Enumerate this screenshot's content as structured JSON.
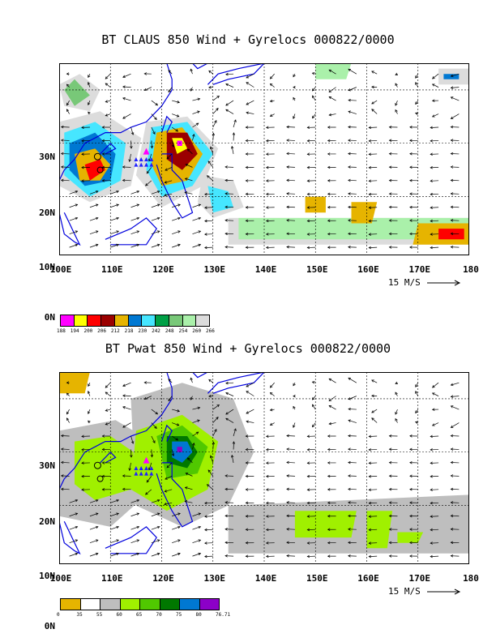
{
  "panel1": {
    "title": "BT CLAUS 850 Wind + Gyrelocs 000822/0000",
    "lat_labels": [
      "30N",
      "20N",
      "10N",
      "0N"
    ],
    "lon_labels": [
      "100E",
      "110E",
      "120E",
      "130E",
      "140E",
      "150E",
      "160E",
      "170E",
      "180"
    ],
    "scale_label": "15 M/S",
    "legend": {
      "colors": [
        "#ff00ff",
        "#ffff00",
        "#ff0000",
        "#9b0000",
        "#e6b400",
        "#0078d2",
        "#46e6ff",
        "#00a046",
        "#78c878",
        "#aaf0aa",
        "#dcdcdc"
      ],
      "labels": [
        "188",
        "194",
        "200",
        "206",
        "212",
        "218",
        "230",
        "242",
        "248",
        "254",
        "260",
        "266"
      ]
    }
  },
  "panel2": {
    "title": "BT Pwat 850 Wind + Gyrelocs 000822/0000",
    "lat_labels": [
      "30N",
      "20N",
      "10N",
      "0N"
    ],
    "lon_labels": [
      "100E",
      "110E",
      "120E",
      "130E",
      "140E",
      "150E",
      "160E",
      "170E",
      "180"
    ],
    "scale_label": "15 M/S",
    "legend": {
      "colors": [
        "#e6b400",
        "#ffffff",
        "#bebebe",
        "#a0f000",
        "#50c800",
        "#007800",
        "#0078d2",
        "#8c00c8"
      ],
      "labels": [
        "0",
        "35",
        "55",
        "60",
        "65",
        "70",
        "75",
        "80",
        "76.71"
      ]
    }
  }
}
